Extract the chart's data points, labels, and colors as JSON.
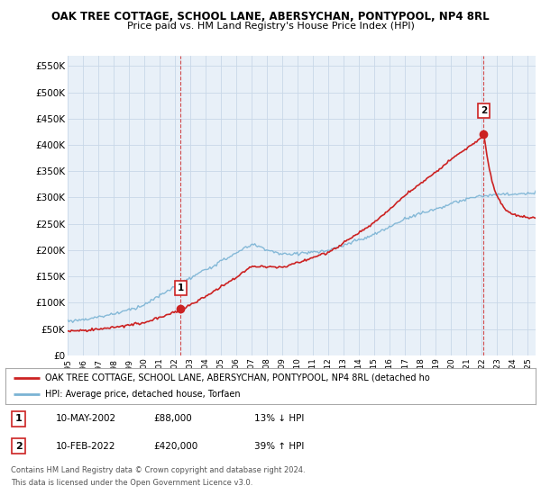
{
  "title": "OAK TREE COTTAGE, SCHOOL LANE, ABERSYCHAN, PONTYPOOL, NP4 8RL",
  "subtitle": "Price paid vs. HM Land Registry's House Price Index (HPI)",
  "ylim": [
    0,
    570000
  ],
  "yticks": [
    0,
    50000,
    100000,
    150000,
    200000,
    250000,
    300000,
    350000,
    400000,
    450000,
    500000,
    550000
  ],
  "ytick_labels": [
    "£0",
    "£50K",
    "£100K",
    "£150K",
    "£200K",
    "£250K",
    "£300K",
    "£350K",
    "£400K",
    "£450K",
    "£500K",
    "£550K"
  ],
  "sale1_date": 2002.37,
  "sale1_price": 88000,
  "sale1_label": "1",
  "sale2_date": 2022.12,
  "sale2_price": 420000,
  "sale2_label": "2",
  "hpi_color": "#7ab3d4",
  "price_color": "#cc2222",
  "chart_bg": "#e8f0f8",
  "legend_price_label": "OAK TREE COTTAGE, SCHOOL LANE, ABERSYCHAN, PONTYPOOL, NP4 8RL (detached ho",
  "legend_hpi_label": "HPI: Average price, detached house, Torfaen",
  "table_row1": [
    "1",
    "10-MAY-2002",
    "£88,000",
    "13% ↓ HPI"
  ],
  "table_row2": [
    "2",
    "10-FEB-2022",
    "£420,000",
    "39% ↑ HPI"
  ],
  "footnote1": "Contains HM Land Registry data © Crown copyright and database right 2024.",
  "footnote2": "This data is licensed under the Open Government Licence v3.0.",
  "background_color": "#ffffff",
  "grid_color": "#c8d8e8"
}
